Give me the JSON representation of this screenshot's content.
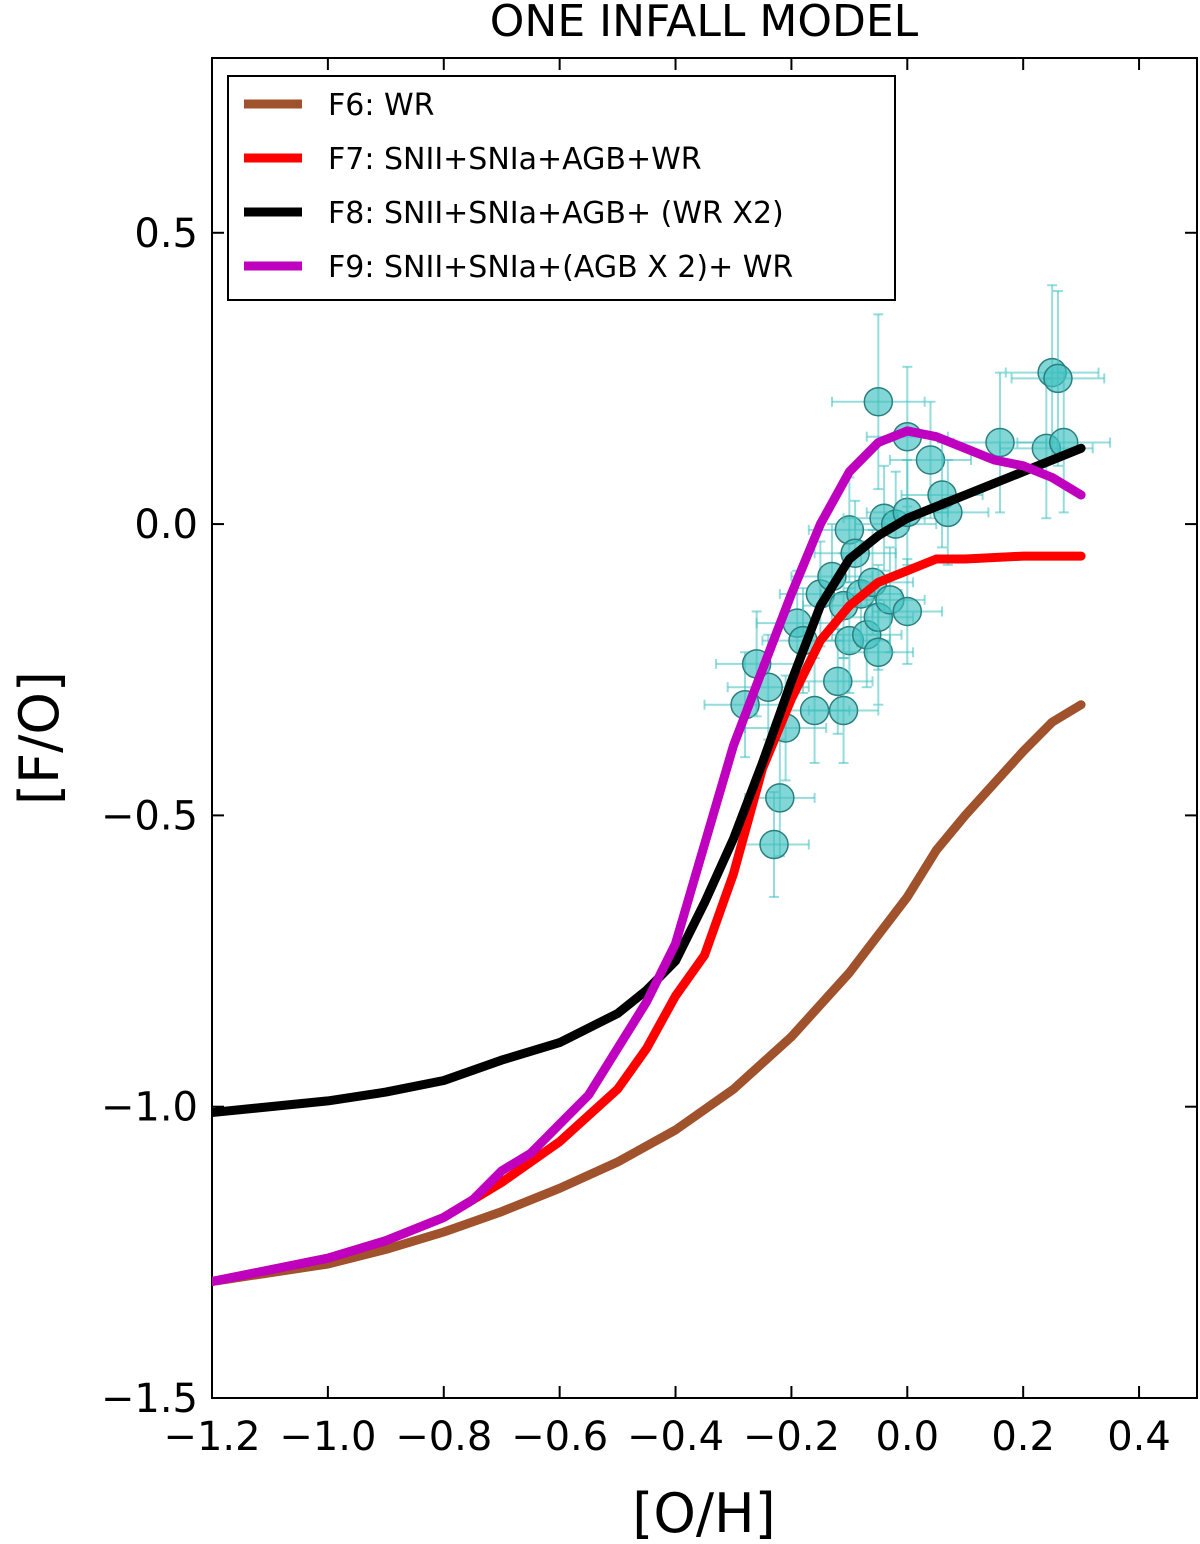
{
  "chart_data": {
    "type": "line",
    "title": "ONE INFALL MODEL",
    "xlabel": "[O/H]",
    "ylabel": "[F/O]",
    "xlim": [
      -1.2,
      0.5
    ],
    "ylim": [
      -1.5,
      0.8
    ],
    "xticks": [
      -1.2,
      -1.0,
      -0.8,
      -0.6,
      -0.4,
      -0.2,
      0.0,
      0.2,
      0.4
    ],
    "xtick_labels": [
      "−1.2",
      "−1.0",
      "−0.8",
      "−0.6",
      "−0.4",
      "−0.2",
      "0.0",
      "0.2",
      "0.4"
    ],
    "yticks": [
      -1.5,
      -1.0,
      -0.5,
      0.0,
      0.5
    ],
    "ytick_labels": [
      "−1.5",
      "−1.0",
      "−0.5",
      "0.0",
      "0.5"
    ],
    "legend_position": "top-left",
    "grid": false,
    "series": [
      {
        "name": "F6: WR",
        "color": "#a0522d",
        "x": [
          -1.2,
          -1.0,
          -0.9,
          -0.8,
          -0.7,
          -0.6,
          -0.5,
          -0.4,
          -0.3,
          -0.2,
          -0.1,
          0.0,
          0.05,
          0.1,
          0.2,
          0.25,
          0.3
        ],
        "y": [
          -1.3,
          -1.27,
          -1.245,
          -1.215,
          -1.18,
          -1.14,
          -1.095,
          -1.04,
          -0.97,
          -0.88,
          -0.77,
          -0.64,
          -0.56,
          -0.5,
          -0.39,
          -0.34,
          -0.31
        ]
      },
      {
        "name": "F7: SNII+SNIa+AGB+WR",
        "color": "#ff0000",
        "x": [
          -1.2,
          -1.0,
          -0.9,
          -0.8,
          -0.75,
          -0.7,
          -0.6,
          -0.5,
          -0.45,
          -0.4,
          -0.35,
          -0.3,
          -0.25,
          -0.2,
          -0.15,
          -0.1,
          -0.05,
          0.0,
          0.05,
          0.1,
          0.2,
          0.3
        ],
        "y": [
          -1.3,
          -1.26,
          -1.23,
          -1.19,
          -1.16,
          -1.13,
          -1.06,
          -0.97,
          -0.9,
          -0.81,
          -0.74,
          -0.6,
          -0.42,
          -0.3,
          -0.2,
          -0.14,
          -0.1,
          -0.08,
          -0.06,
          -0.06,
          -0.055,
          -0.055
        ]
      },
      {
        "name": "F8: SNII+SNIa+AGB+ (WR X2)",
        "color": "#000000",
        "x": [
          -1.2,
          -1.0,
          -0.9,
          -0.8,
          -0.7,
          -0.6,
          -0.5,
          -0.45,
          -0.4,
          -0.35,
          -0.3,
          -0.25,
          -0.2,
          -0.15,
          -0.1,
          -0.05,
          0.0,
          0.05,
          0.1,
          0.2,
          0.3
        ],
        "y": [
          -1.01,
          -0.99,
          -0.975,
          -0.955,
          -0.92,
          -0.89,
          -0.84,
          -0.8,
          -0.75,
          -0.65,
          -0.54,
          -0.41,
          -0.27,
          -0.14,
          -0.06,
          -0.02,
          0.01,
          0.03,
          0.05,
          0.09,
          0.13
        ]
      },
      {
        "name": "F9: SNII+SNIa+(AGB X 2)+ WR",
        "color": "#bf00bf",
        "x": [
          -1.2,
          -1.0,
          -0.9,
          -0.8,
          -0.75,
          -0.7,
          -0.65,
          -0.6,
          -0.55,
          -0.5,
          -0.45,
          -0.4,
          -0.35,
          -0.3,
          -0.25,
          -0.2,
          -0.15,
          -0.1,
          -0.05,
          0.0,
          0.05,
          0.1,
          0.15,
          0.2,
          0.25,
          0.3
        ],
        "y": [
          -1.3,
          -1.26,
          -1.23,
          -1.19,
          -1.16,
          -1.11,
          -1.08,
          -1.03,
          -0.98,
          -0.9,
          -0.82,
          -0.72,
          -0.55,
          -0.38,
          -0.25,
          -0.12,
          0.0,
          0.09,
          0.14,
          0.16,
          0.15,
          0.13,
          0.11,
          0.1,
          0.08,
          0.05
        ]
      }
    ],
    "observations": {
      "name": "observed stars",
      "color": "#40c0c0",
      "points": [
        {
          "x": -0.28,
          "y": -0.31,
          "xerr": 0.07,
          "yerr": 0.09
        },
        {
          "x": -0.26,
          "y": -0.24,
          "xerr": 0.07,
          "yerr": 0.09
        },
        {
          "x": -0.24,
          "y": -0.28,
          "xerr": 0.07,
          "yerr": 0.09
        },
        {
          "x": -0.22,
          "y": -0.47,
          "xerr": 0.06,
          "yerr": 0.1
        },
        {
          "x": -0.23,
          "y": -0.55,
          "xerr": 0.06,
          "yerr": 0.09
        },
        {
          "x": -0.21,
          "y": -0.35,
          "xerr": 0.07,
          "yerr": 0.09
        },
        {
          "x": -0.19,
          "y": -0.17,
          "xerr": 0.07,
          "yerr": 0.09
        },
        {
          "x": -0.18,
          "y": -0.2,
          "xerr": 0.07,
          "yerr": 0.09
        },
        {
          "x": -0.16,
          "y": -0.32,
          "xerr": 0.06,
          "yerr": 0.09
        },
        {
          "x": -0.15,
          "y": -0.12,
          "xerr": 0.07,
          "yerr": 0.09
        },
        {
          "x": -0.13,
          "y": -0.09,
          "xerr": 0.07,
          "yerr": 0.09
        },
        {
          "x": -0.12,
          "y": -0.27,
          "xerr": 0.06,
          "yerr": 0.09
        },
        {
          "x": -0.11,
          "y": -0.14,
          "xerr": 0.07,
          "yerr": 0.09
        },
        {
          "x": -0.11,
          "y": -0.32,
          "xerr": 0.06,
          "yerr": 0.09
        },
        {
          "x": -0.1,
          "y": -0.2,
          "xerr": 0.07,
          "yerr": 0.09
        },
        {
          "x": -0.1,
          "y": -0.01,
          "xerr": 0.07,
          "yerr": 0.09
        },
        {
          "x": -0.09,
          "y": -0.05,
          "xerr": 0.07,
          "yerr": 0.09
        },
        {
          "x": -0.08,
          "y": -0.12,
          "xerr": 0.07,
          "yerr": 0.09
        },
        {
          "x": -0.07,
          "y": -0.19,
          "xerr": 0.06,
          "yerr": 0.09
        },
        {
          "x": -0.06,
          "y": -0.1,
          "xerr": 0.07,
          "yerr": 0.09
        },
        {
          "x": -0.05,
          "y": -0.16,
          "xerr": 0.06,
          "yerr": 0.09
        },
        {
          "x": -0.05,
          "y": -0.22,
          "xerr": 0.06,
          "yerr": 0.09
        },
        {
          "x": -0.04,
          "y": 0.01,
          "xerr": 0.07,
          "yerr": 0.09
        },
        {
          "x": -0.03,
          "y": -0.13,
          "xerr": 0.06,
          "yerr": 0.09
        },
        {
          "x": -0.02,
          "y": 0.0,
          "xerr": 0.07,
          "yerr": 0.09
        },
        {
          "x": 0.0,
          "y": 0.02,
          "xerr": 0.07,
          "yerr": 0.09
        },
        {
          "x": 0.0,
          "y": -0.15,
          "xerr": 0.06,
          "yerr": 0.09
        },
        {
          "x": -0.05,
          "y": 0.21,
          "xerr": 0.08,
          "yerr": 0.15
        },
        {
          "x": 0.0,
          "y": 0.15,
          "xerr": 0.07,
          "yerr": 0.12
        },
        {
          "x": 0.04,
          "y": 0.11,
          "xerr": 0.07,
          "yerr": 0.1
        },
        {
          "x": 0.06,
          "y": 0.05,
          "xerr": 0.07,
          "yerr": 0.09
        },
        {
          "x": 0.07,
          "y": 0.02,
          "xerr": 0.07,
          "yerr": 0.09
        },
        {
          "x": 0.16,
          "y": 0.14,
          "xerr": 0.08,
          "yerr": 0.12
        },
        {
          "x": 0.24,
          "y": 0.13,
          "xerr": 0.08,
          "yerr": 0.12
        },
        {
          "x": 0.25,
          "y": 0.26,
          "xerr": 0.08,
          "yerr": 0.15
        },
        {
          "x": 0.26,
          "y": 0.25,
          "xerr": 0.08,
          "yerr": 0.15
        },
        {
          "x": 0.27,
          "y": 0.14,
          "xerr": 0.08,
          "yerr": 0.12
        }
      ]
    }
  }
}
